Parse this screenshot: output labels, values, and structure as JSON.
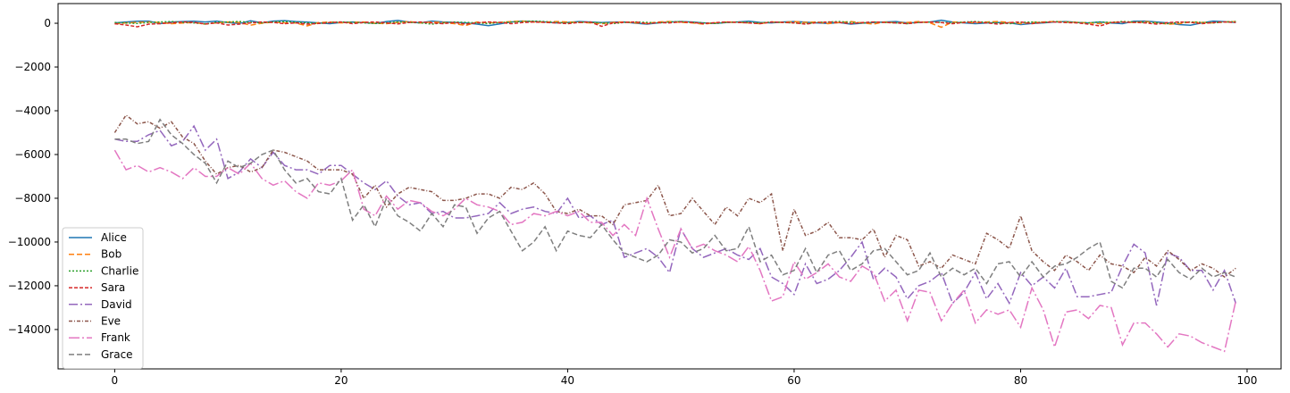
{
  "chart_data": {
    "type": "line",
    "title": "",
    "xlabel": "",
    "ylabel": "",
    "xlim": [
      -5,
      103
    ],
    "ylim": [
      -15800,
      900
    ],
    "xticks": [
      0,
      20,
      40,
      60,
      80,
      100
    ],
    "yticks": [
      0,
      -2000,
      -4000,
      -6000,
      -8000,
      -10000,
      -12000,
      -14000
    ],
    "grid": false,
    "legend_position": "lower-left",
    "x": [
      0,
      1,
      2,
      3,
      4,
      5,
      6,
      7,
      8,
      9,
      10,
      11,
      12,
      13,
      14,
      15,
      16,
      17,
      18,
      19,
      20,
      21,
      22,
      23,
      24,
      25,
      26,
      27,
      28,
      29,
      30,
      31,
      32,
      33,
      34,
      35,
      36,
      37,
      38,
      39,
      40,
      41,
      42,
      43,
      44,
      45,
      46,
      47,
      48,
      49,
      50,
      51,
      52,
      53,
      54,
      55,
      56,
      57,
      58,
      59,
      60,
      61,
      62,
      63,
      64,
      65,
      66,
      67,
      68,
      69,
      70,
      71,
      72,
      73,
      74,
      75,
      76,
      77,
      78,
      79,
      80,
      81,
      82,
      83,
      84,
      85,
      86,
      87,
      88,
      89,
      90,
      91,
      92,
      93,
      94,
      95,
      96,
      97,
      98,
      99
    ],
    "series": [
      {
        "name": "Alice",
        "color": "#1f77b4",
        "dash": "solid",
        "values": [
          20,
          60,
          90,
          100,
          -20,
          50,
          80,
          90,
          60,
          100,
          30,
          -10,
          110,
          20,
          100,
          120,
          80,
          50,
          20,
          -20,
          40,
          60,
          30,
          -10,
          80,
          130,
          60,
          20,
          100,
          60,
          40,
          20,
          -40,
          -110,
          -30,
          60,
          100,
          80,
          60,
          20,
          40,
          80,
          60,
          30,
          50,
          60,
          0,
          -40,
          20,
          60,
          80,
          60,
          20,
          -10,
          30,
          60,
          90,
          40,
          20,
          60,
          80,
          50,
          20,
          -10,
          30,
          -40,
          0,
          30,
          60,
          80,
          20,
          40,
          60,
          140,
          50,
          20,
          -20,
          10,
          40,
          20,
          -60,
          -10,
          20,
          60,
          80,
          40,
          20,
          60,
          10,
          -20,
          90,
          100,
          60,
          20,
          -60,
          -90,
          20,
          100,
          70,
          40
        ]
      },
      {
        "name": "Bob",
        "color": "#ff7f0e",
        "dash": "6,3",
        "values": [
          -30,
          20,
          40,
          60,
          30,
          -20,
          10,
          40,
          -40,
          20,
          60,
          40,
          -90,
          0,
          50,
          20,
          10,
          -120,
          30,
          60,
          20,
          40,
          60,
          0,
          -20,
          40,
          80,
          20,
          60,
          40,
          -20,
          -100,
          60,
          20,
          40,
          80,
          100,
          60,
          50,
          80,
          60,
          40,
          20,
          -20,
          40,
          60,
          20,
          0,
          60,
          80,
          40,
          20,
          -40,
          20,
          60,
          40,
          20,
          -20,
          60,
          40,
          80,
          40,
          60,
          -20,
          40,
          80,
          20,
          -40,
          60,
          20,
          40,
          80,
          20,
          -180,
          60,
          40,
          20,
          60,
          80,
          40,
          -20,
          40,
          60,
          80,
          60,
          40,
          20,
          -20,
          40,
          60,
          40,
          80,
          20,
          -40,
          -20,
          60,
          40,
          20,
          60,
          80
        ]
      },
      {
        "name": "Charlie",
        "color": "#2ca02c",
        "dash": "2,2",
        "values": [
          40,
          10,
          -10,
          40,
          60,
          80,
          40,
          20,
          -30,
          40,
          60,
          80,
          40,
          20,
          60,
          80,
          40,
          20,
          -10,
          40,
          60,
          40,
          20,
          -10,
          20,
          60,
          40,
          20,
          -40,
          20,
          60,
          40,
          20,
          -20,
          40,
          60,
          80,
          100,
          80,
          40,
          20,
          60,
          40,
          20,
          -20,
          40,
          60,
          40,
          20,
          60,
          80,
          40,
          20,
          -10,
          40,
          60,
          40,
          20,
          60,
          40,
          20,
          -20,
          40,
          60,
          80,
          40,
          20,
          60,
          40,
          20,
          -20,
          40,
          60,
          40,
          20,
          60,
          80,
          40,
          20,
          -20,
          40,
          60,
          40,
          80,
          60,
          40,
          20,
          60,
          40,
          80,
          60,
          40,
          20,
          -20,
          40,
          60,
          40,
          20,
          60,
          80
        ]
      },
      {
        "name": "Sara",
        "color": "#d62728",
        "dash": "4,2",
        "values": [
          -20,
          -80,
          -160,
          -40,
          -20,
          20,
          60,
          40,
          -30,
          20,
          -80,
          -40,
          20,
          60,
          40,
          -20,
          20,
          -40,
          -10,
          30,
          60,
          -20,
          40,
          60,
          20,
          -30,
          40,
          60,
          20,
          -20,
          40,
          -40,
          20,
          60,
          40,
          -20,
          30,
          60,
          40,
          20,
          -20,
          40,
          60,
          -140,
          20,
          40,
          60,
          -20,
          30,
          20,
          60,
          40,
          -20,
          30,
          60,
          40,
          20,
          -20,
          60,
          40,
          20,
          -40,
          30,
          60,
          40,
          -20,
          30,
          60,
          40,
          20,
          -20,
          40,
          60,
          30,
          -20,
          40,
          60,
          20,
          -40,
          30,
          60,
          -20,
          40,
          60,
          30,
          20,
          -40,
          -120,
          30,
          60,
          40,
          20,
          -40,
          30,
          60,
          40,
          -20,
          30,
          60,
          40
        ]
      },
      {
        "name": "David",
        "color": "#9467bd",
        "dash": "10,3,2,3",
        "values": [
          -5300,
          -5400,
          -5400,
          -5100,
          -4900,
          -5600,
          -5400,
          -4700,
          -5800,
          -5300,
          -7100,
          -6800,
          -6200,
          -6600,
          -5900,
          -6500,
          -6700,
          -6700,
          -6900,
          -6500,
          -6500,
          -6900,
          -7300,
          -7600,
          -7200,
          -7900,
          -8300,
          -8200,
          -8700,
          -8600,
          -8900,
          -8900,
          -8800,
          -8700,
          -8200,
          -8700,
          -8500,
          -8400,
          -8600,
          -8700,
          -8000,
          -8900,
          -8800,
          -9200,
          -9000,
          -10700,
          -10500,
          -10300,
          -10700,
          -11400,
          -9400,
          -10300,
          -10700,
          -10500,
          -10300,
          -10600,
          -10800,
          -10300,
          -11600,
          -11900,
          -12400,
          -11000,
          -11900,
          -11700,
          -11300,
          -10700,
          -10000,
          -11700,
          -11200,
          -11600,
          -12600,
          -12000,
          -11800,
          -11400,
          -12800,
          -12300,
          -11400,
          -12600,
          -11900,
          -12800,
          -11400,
          -12000,
          -11600,
          -12100,
          -11200,
          -12500,
          -12500,
          -12400,
          -12300,
          -11100,
          -10100,
          -10500,
          -12900,
          -10500,
          -10700,
          -11300,
          -11300,
          -12200,
          -11300,
          -12800
        ]
      },
      {
        "name": "Eve",
        "color": "#8c564b",
        "dash": "4,2,1,2",
        "values": [
          -5000,
          -4200,
          -4600,
          -4500,
          -4800,
          -4500,
          -5200,
          -5500,
          -6300,
          -6900,
          -6600,
          -6500,
          -6800,
          -6600,
          -5800,
          -5900,
          -6100,
          -6300,
          -6700,
          -6700,
          -6700,
          -6900,
          -8000,
          -7400,
          -8400,
          -7800,
          -7500,
          -7600,
          -7700,
          -8100,
          -8100,
          -8000,
          -7800,
          -7800,
          -8000,
          -7500,
          -7600,
          -7300,
          -7800,
          -8600,
          -8700,
          -8500,
          -8800,
          -8800,
          -9200,
          -8300,
          -8200,
          -8100,
          -7400,
          -8800,
          -8700,
          -8000,
          -8600,
          -9200,
          -8400,
          -8800,
          -8000,
          -8200,
          -7800,
          -10400,
          -8500,
          -9700,
          -9500,
          -9100,
          -9800,
          -9800,
          -9900,
          -9400,
          -10700,
          -9700,
          -9900,
          -11100,
          -10900,
          -11200,
          -10600,
          -10800,
          -11000,
          -9600,
          -9900,
          -10300,
          -8800,
          -10400,
          -10900,
          -11300,
          -10600,
          -10900,
          -11300,
          -10600,
          -11000,
          -11100,
          -11400,
          -10700,
          -11100,
          -10400,
          -10800,
          -11300,
          -11000,
          -11200,
          -11600,
          -11200
        ]
      },
      {
        "name": "Frank",
        "color": "#e377c2",
        "dash": "12,3,2,3",
        "values": [
          -5800,
          -6700,
          -6500,
          -6800,
          -6600,
          -6800,
          -7100,
          -6600,
          -7000,
          -7000,
          -6600,
          -6900,
          -6400,
          -7100,
          -7400,
          -7200,
          -7700,
          -8000,
          -7300,
          -7400,
          -7200,
          -6700,
          -8500,
          -8800,
          -7900,
          -8500,
          -8100,
          -8200,
          -8600,
          -8800,
          -8500,
          -8000,
          -8300,
          -8400,
          -8600,
          -9200,
          -9100,
          -8700,
          -8800,
          -8600,
          -8800,
          -8600,
          -9100,
          -9100,
          -9700,
          -9200,
          -9700,
          -8000,
          -9400,
          -10700,
          -9400,
          -10300,
          -10100,
          -10400,
          -10600,
          -10900,
          -10200,
          -11300,
          -12700,
          -12500,
          -10900,
          -11700,
          -11400,
          -11000,
          -11600,
          -11800,
          -11100,
          -11400,
          -12700,
          -12200,
          -13600,
          -12200,
          -12300,
          -13600,
          -12800,
          -12200,
          -13700,
          -13100,
          -13300,
          -13100,
          -13900,
          -12100,
          -13100,
          -14800,
          -13200,
          -13100,
          -13500,
          -12900,
          -13000,
          -14700,
          -13700,
          -13700,
          -14200,
          -14800,
          -14200,
          -14300,
          -14600,
          -14800,
          -15000,
          -12700
        ]
      },
      {
        "name": "Grace",
        "color": "#7f7f7f",
        "dash": "6,3",
        "values": [
          -5300,
          -5300,
          -5500,
          -5400,
          -4400,
          -5100,
          -5500,
          -6000,
          -6400,
          -7300,
          -6300,
          -6600,
          -6400,
          -6000,
          -5800,
          -6700,
          -7300,
          -7100,
          -7700,
          -7800,
          -7100,
          -9000,
          -8300,
          -9300,
          -8000,
          -8800,
          -9100,
          -9500,
          -8700,
          -9300,
          -8300,
          -8400,
          -9600,
          -8900,
          -8600,
          -9500,
          -10400,
          -10000,
          -9300,
          -10400,
          -9500,
          -9700,
          -9800,
          -9200,
          -9900,
          -10500,
          -10700,
          -10900,
          -10600,
          -9900,
          -10000,
          -10500,
          -10300,
          -9700,
          -10400,
          -10300,
          -9300,
          -10900,
          -10600,
          -11500,
          -11300,
          -10300,
          -11400,
          -10600,
          -10400,
          -11300,
          -11000,
          -10400,
          -10300,
          -10900,
          -11500,
          -11300,
          -10500,
          -11600,
          -11200,
          -11500,
          -11200,
          -11900,
          -11000,
          -10900,
          -11600,
          -10900,
          -11600,
          -11100,
          -11000,
          -10700,
          -10300,
          -10000,
          -11800,
          -12100,
          -11200,
          -11200,
          -11600,
          -10800,
          -11400,
          -11700,
          -11200,
          -11600,
          -11400,
          -11600
        ]
      }
    ]
  }
}
